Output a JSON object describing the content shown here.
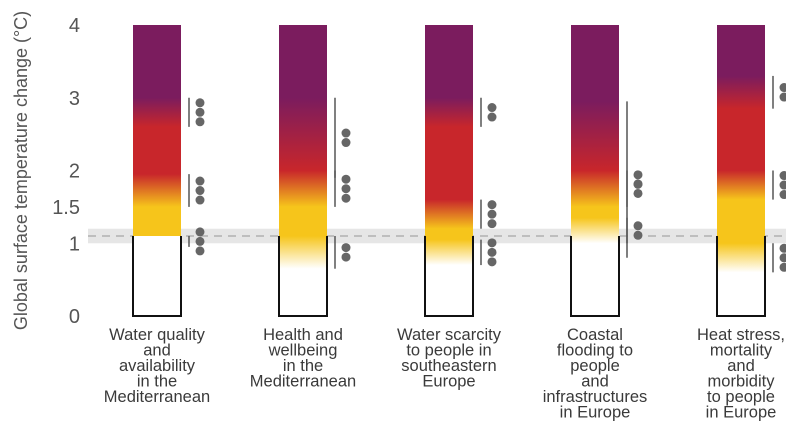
{
  "chart_data": {
    "type": "bar",
    "ylabel": "Global surface temperature change (°C)",
    "yticks": [
      "0",
      "1",
      "1.5",
      "2",
      "3",
      "4"
    ],
    "tick_values": [
      0,
      1,
      1.5,
      2,
      3,
      4
    ],
    "ylim": [
      0,
      4
    ],
    "grid": false,
    "reference_band": [
      1.0,
      1.2
    ],
    "reference_line": 1.1,
    "categories": [
      "Water quality and availability in the Mediterranean",
      "Health and wellbeing in the Mediterranean",
      "Water scarcity to people in southeastern Europe",
      "Coastal flooding to people and infrastructures in Europe",
      "Heat stress, mortality and morbidity to people in Europe"
    ],
    "category_lines": [
      [
        "Water quality",
        "and",
        "availability",
        "in the",
        "Mediterranean"
      ],
      [
        "Health and",
        "wellbeing",
        "in the",
        "Mediterranean"
      ],
      [
        "Water scarcity",
        "to people in",
        "southeastern",
        "Europe"
      ],
      [
        "Coastal",
        "flooding to",
        "people",
        "and",
        "infrastructures",
        "in Europe"
      ],
      [
        "Heat stress,",
        "mortality",
        "and",
        "morbidity",
        "to people",
        "in Europe"
      ]
    ],
    "risk_colors": {
      "undetectable": "#ffffff",
      "moderate": "#f6c51b",
      "high": "#c8262b",
      "very_high": "#7b1c5e"
    },
    "series": [
      {
        "transitions": [
          {
            "from": 0.95,
            "to": 1.1,
            "confidence": 3
          },
          {
            "from": 1.95,
            "to": 1.5,
            "confidence": 3
          },
          {
            "from": 3.0,
            "to": 2.6,
            "confidence": 3
          }
        ]
      },
      {
        "transitions": [
          {
            "from": 1.1,
            "to": 0.65,
            "confidence": 2
          },
          {
            "from": 2.0,
            "to": 1.5,
            "confidence": 3
          },
          {
            "from": 3.0,
            "to": 1.9,
            "confidence": 2
          }
        ]
      },
      {
        "transitions": [
          {
            "from": 1.05,
            "to": 0.7,
            "confidence": 3
          },
          {
            "from": 1.6,
            "to": 1.2,
            "confidence": 3
          },
          {
            "from": 3.0,
            "to": 2.6,
            "confidence": 2
          }
        ]
      },
      {
        "transitions": [
          {
            "from": 1.35,
            "to": 1.0,
            "confidence": 2
          },
          {
            "from": 2.0,
            "to": 1.5,
            "confidence": 2
          },
          {
            "from": 2.95,
            "to": 0.8,
            "confidence": 2
          }
        ]
      },
      {
        "transitions": [
          {
            "from": 1.0,
            "to": 0.6,
            "confidence": 3
          },
          {
            "from": 2.0,
            "to": 1.6,
            "confidence": 3
          },
          {
            "from": 3.3,
            "to": 2.85,
            "confidence": 2
          }
        ]
      }
    ]
  }
}
